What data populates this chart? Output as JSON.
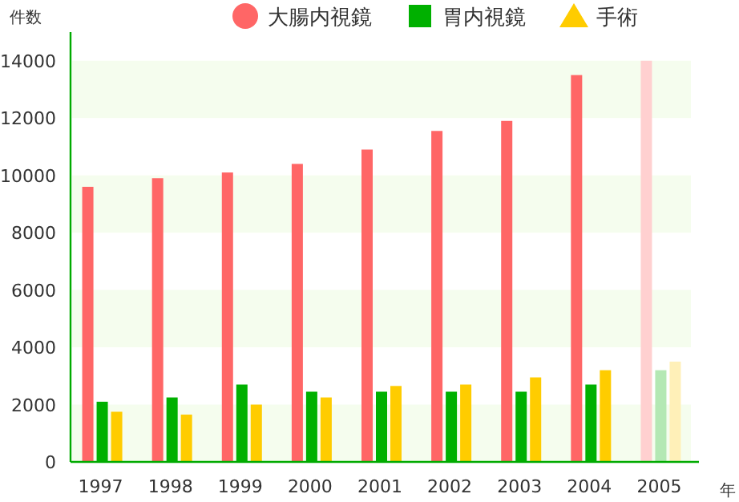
{
  "chart_data": {
    "type": "bar",
    "ylabel": "件数",
    "xlabel": "年",
    "categories": [
      "1997",
      "1998",
      "1999",
      "2000",
      "2001",
      "2002",
      "2003",
      "2004",
      "2005"
    ],
    "series": [
      {
        "name": "大腸内視鏡",
        "color": "#ff6666",
        "marker": "circle",
        "colors": [
          "#ff6666",
          "#ff6666",
          "#ff6666",
          "#ff6666",
          "#ff6666",
          "#ff6666",
          "#ff6666",
          "#ff6666",
          "#ffd0d0"
        ],
        "values": [
          9600,
          9900,
          10100,
          10400,
          10900,
          11550,
          11900,
          13500,
          14000
        ]
      },
      {
        "name": "胃内視鏡",
        "color": "#00b000",
        "marker": "square",
        "colors": [
          "#00b000",
          "#00b000",
          "#00b000",
          "#00b000",
          "#00b000",
          "#00b000",
          "#00b000",
          "#00b000",
          "#b4e8b4"
        ],
        "values": [
          2100,
          2250,
          2700,
          2450,
          2450,
          2450,
          2450,
          2700,
          3200
        ]
      },
      {
        "name": "手術",
        "color": "#ffcc00",
        "marker": "triangle",
        "colors": [
          "#ffcc00",
          "#ffcc00",
          "#ffcc00",
          "#ffcc00",
          "#ffcc00",
          "#ffcc00",
          "#ffcc00",
          "#ffcc00",
          "#fff0b8"
        ],
        "values": [
          1750,
          1650,
          2000,
          2250,
          2650,
          2700,
          2950,
          3200,
          3500
        ]
      }
    ],
    "ylim": [
      0,
      15000
    ],
    "yticks": [
      0,
      2000,
      4000,
      6000,
      8000,
      10000,
      12000,
      14000
    ],
    "bands": [
      {
        "axis": "y",
        "from": 0,
        "to": 2000,
        "color": "#f5fdee"
      },
      {
        "axis": "y",
        "from": 4000,
        "to": 6000,
        "color": "#f5fdee"
      },
      {
        "axis": "y",
        "from": 8000,
        "to": 10000,
        "color": "#f5fdee"
      },
      {
        "axis": "y",
        "from": 12000,
        "to": 14000,
        "color": "#f5fdee"
      }
    ],
    "grid": false,
    "legend": "top"
  }
}
